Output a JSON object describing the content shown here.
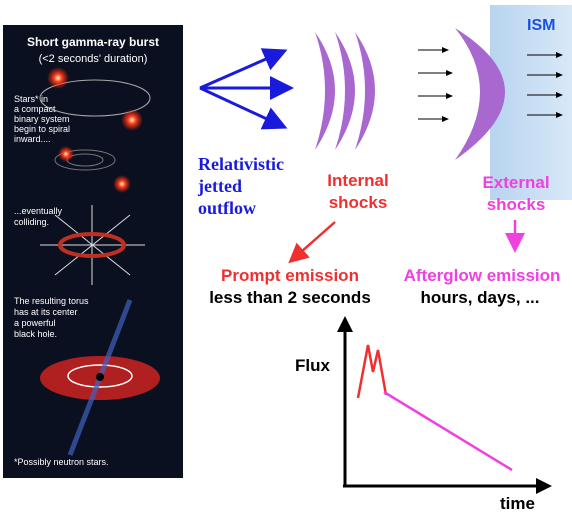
{
  "panel": {
    "title": "Short gamma-ray burst",
    "subtitle": "(<2 seconds' duration)",
    "steps": [
      {
        "lines": [
          "Stars* in",
          "a compact",
          "binary system",
          "begin to spiral",
          "inward...."
        ]
      },
      {
        "lines": [
          "...eventually",
          "colliding."
        ]
      },
      {
        "lines": [
          "The resulting torus",
          "has at its center",
          "a powerful",
          "black hole."
        ]
      }
    ],
    "footnote": "*Possibly neutron stars."
  },
  "ism": "ISM",
  "outflow": {
    "lines": [
      "Relativistic",
      "jetted",
      "outflow"
    ]
  },
  "internal": {
    "lines": [
      "Internal",
      "shocks"
    ]
  },
  "external": {
    "lines": [
      "External",
      "shocks"
    ]
  },
  "prompt": {
    "title": "Prompt emission",
    "duration": "less than 2 seconds"
  },
  "afterglow": {
    "title": "Afterglow emission",
    "duration": "hours, days, ..."
  },
  "plot": {
    "ylabel": "Flux",
    "xlabel": "time"
  }
}
